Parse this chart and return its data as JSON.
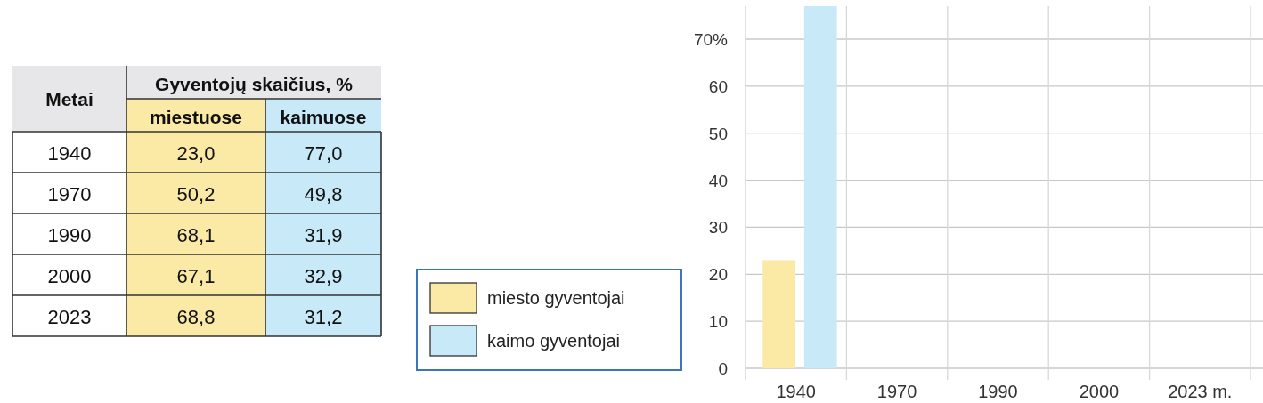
{
  "chart_data": [
    {
      "type": "other",
      "title": "Gyventojų skaičius, %",
      "ylabel": "Metai",
      "categories": [
        "1940",
        "1970",
        "1990",
        "2000",
        "2023"
      ],
      "series": [
        {
          "name": "miestuose",
          "color": "#fbe9a6",
          "values": [
            23.0,
            50.2,
            68.1,
            67.1,
            68.8
          ],
          "value_labels": [
            "23,0",
            "50,2",
            "68,1",
            "67,1",
            "68,8"
          ]
        },
        {
          "name": "kaimuose",
          "color": "#c8e9f8",
          "values": [
            77.0,
            49.8,
            31.9,
            32.9,
            31.2
          ],
          "value_labels": [
            "77,0",
            "49,8",
            "31,9",
            "32,9",
            "31,2"
          ]
        }
      ]
    },
    {
      "type": "bar",
      "categories": [
        "1940",
        "1970",
        "1990",
        "2000",
        "2023 m."
      ],
      "series": [
        {
          "name": "miesto gyventojai",
          "color": "#fbe9a6",
          "values": [
            23.0,
            null,
            null,
            null,
            null
          ]
        },
        {
          "name": "kaimo gyventojai",
          "color": "#c8e9f8",
          "values": [
            77.0,
            null,
            null,
            null,
            null
          ]
        }
      ],
      "ylim": [
        0,
        77
      ],
      "yticks": [
        0,
        10,
        20,
        30,
        40,
        50,
        60,
        {
          "value": 70,
          "label": "70%"
        }
      ],
      "grid": true,
      "legend": "left"
    }
  ]
}
